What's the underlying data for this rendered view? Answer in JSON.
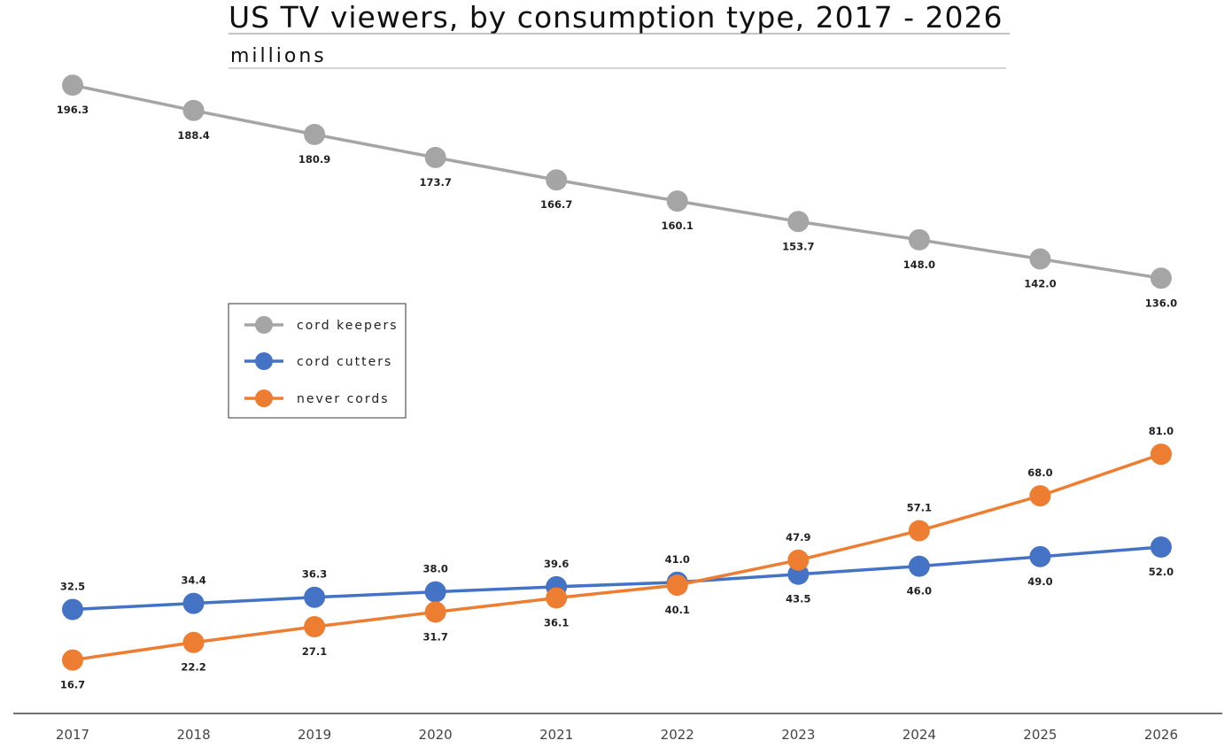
{
  "chart_data": {
    "type": "line",
    "title": "US TV viewers, by consumption type, 2017 - 2026",
    "subtitle": "millions",
    "xlabel": "",
    "ylabel": "",
    "categories": [
      "2017",
      "2018",
      "2019",
      "2020",
      "2021",
      "2022",
      "2023",
      "2024",
      "2025",
      "2026"
    ],
    "ylim": [
      0,
      210
    ],
    "grid": false,
    "legend_position": "left",
    "series": [
      {
        "name": "cord keepers",
        "color": "#a5a5a5",
        "values": [
          196.3,
          188.4,
          180.9,
          173.7,
          166.7,
          160.1,
          153.7,
          148.0,
          142.0,
          136.0
        ],
        "labels": [
          "196.3",
          "188.4",
          "180.9",
          "173.7",
          "166.7",
          "160.1",
          "153.7",
          "148.0",
          "142.0",
          "136.0"
        ],
        "label_positions": [
          "below",
          "below",
          "below",
          "below",
          "below",
          "below",
          "below",
          "below",
          "below",
          "below"
        ]
      },
      {
        "name": "cord cutters",
        "color": "#4472c4",
        "values": [
          32.5,
          34.4,
          36.3,
          38.0,
          39.6,
          41.0,
          43.5,
          46.0,
          49.0,
          52.0
        ],
        "labels": [
          "32.5",
          "34.4",
          "36.3",
          "38.0",
          "39.6",
          "41.0",
          "43.5",
          "46.0",
          "49.0",
          "52.0"
        ],
        "label_positions": [
          "above",
          "above",
          "above",
          "above",
          "above",
          "above",
          "below",
          "below",
          "below",
          "below"
        ]
      },
      {
        "name": "never cords",
        "color": "#ed7d31",
        "values": [
          16.7,
          22.2,
          27.1,
          31.7,
          36.1,
          40.1,
          47.9,
          57.1,
          68.0,
          81.0
        ],
        "labels": [
          "16.7",
          "22.2",
          "27.1",
          "31.7",
          "36.1",
          "40.1",
          "47.9",
          "57.1",
          "68.0",
          "81.0"
        ],
        "label_positions": [
          "below",
          "below",
          "below",
          "below",
          "below",
          "below",
          "above",
          "above",
          "above",
          "above"
        ]
      }
    ]
  }
}
